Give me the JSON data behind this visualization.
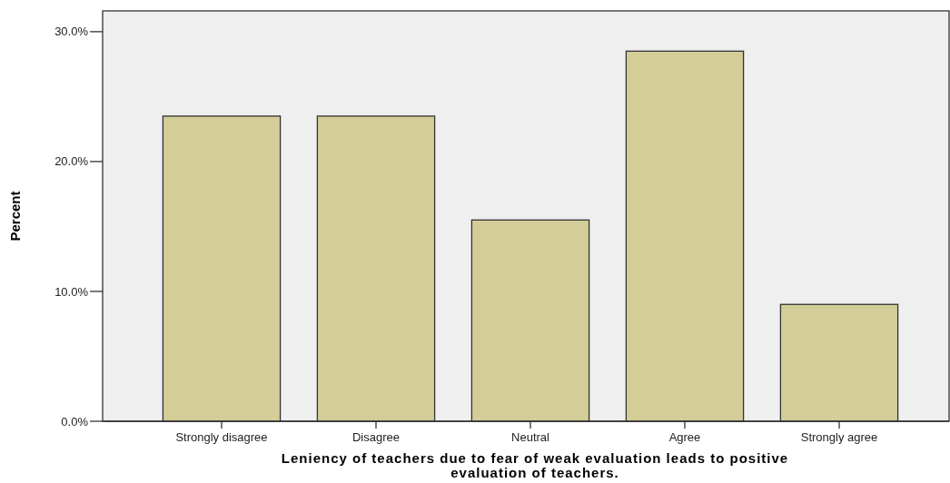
{
  "chart_data": {
    "type": "bar",
    "xlabel": "Leniency of teachers due to fear of weak evaluation leads to positive evaluation of teachers.",
    "ylabel": "Percent",
    "categories": [
      "Strongly disagree",
      "Disagree",
      "Neutral",
      "Agree",
      "Strongly agree"
    ],
    "values": [
      23.5,
      23.5,
      15.5,
      28.5,
      9.0
    ],
    "color": "#d3cd98",
    "ylim": [
      0,
      31.6
    ],
    "yticks": [
      {
        "value": 0,
        "label": "0.0%"
      },
      {
        "value": 10,
        "label": "10.0%"
      },
      {
        "value": 20,
        "label": "20.0%"
      },
      {
        "value": 30,
        "label": "30.0%"
      }
    ],
    "grid": false
  }
}
